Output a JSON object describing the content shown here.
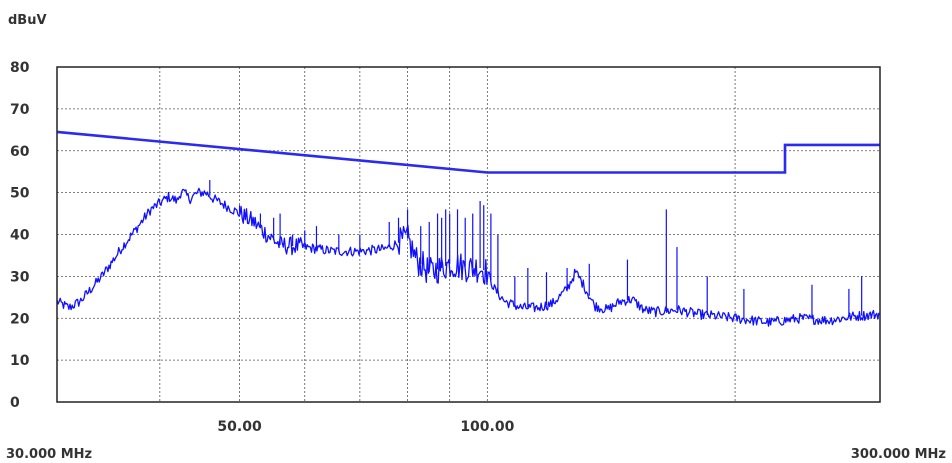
{
  "chart_data": {
    "type": "line",
    "ylabel": "dBuV",
    "xscale": "log",
    "xlim": [
      30,
      300
    ],
    "ylim": [
      0,
      80
    ],
    "yticks": [
      "80",
      "70",
      "60",
      "50",
      "40",
      "30",
      "20",
      "10",
      "0"
    ],
    "xtick_labels": [
      {
        "value": 50,
        "label": "50.00"
      },
      {
        "value": 100,
        "label": "100.00"
      }
    ],
    "x_start_label": "30.000 MHz",
    "x_end_label": "300.000 MHz",
    "grid": true,
    "colors": {
      "limit": "#2a2af0",
      "measurement": "#1010ff",
      "frame": "#222222",
      "grid": "#555555"
    },
    "series": [
      {
        "role": "limit",
        "points": [
          [
            30,
            64.5
          ],
          [
            100,
            54.8
          ],
          [
            230,
            54.8
          ],
          [
            230,
            61.4
          ],
          [
            300,
            61.4
          ]
        ]
      },
      {
        "role": "measurement",
        "points": [
          [
            30,
            24
          ],
          [
            31,
            22.5
          ],
          [
            32,
            24
          ],
          [
            33,
            27
          ],
          [
            34,
            30
          ],
          [
            35,
            33.5
          ],
          [
            36,
            37
          ],
          [
            37,
            40
          ],
          [
            38,
            43
          ],
          [
            39,
            46
          ],
          [
            40,
            47.5
          ],
          [
            41,
            49
          ],
          [
            42,
            48
          ],
          [
            42.5,
            50.5
          ],
          [
            43.5,
            48.5
          ],
          [
            44.5,
            50
          ],
          [
            45.5,
            50
          ],
          [
            46.5,
            48.5
          ],
          [
            48,
            47
          ],
          [
            50,
            45
          ],
          [
            52,
            43
          ],
          [
            54,
            40
          ],
          [
            56,
            37.5
          ],
          [
            60,
            37
          ],
          [
            65,
            36
          ],
          [
            70,
            36
          ],
          [
            75,
            36.5
          ],
          [
            80,
            39
          ],
          [
            82,
            34
          ],
          [
            85,
            31
          ],
          [
            88,
            32
          ],
          [
            90,
            33
          ],
          [
            95,
            32
          ],
          [
            98,
            32
          ],
          [
            100,
            31
          ],
          [
            102,
            27
          ],
          [
            105,
            24
          ],
          [
            110,
            22.5
          ],
          [
            115,
            22.5
          ],
          [
            120,
            23.5
          ],
          [
            125,
            27
          ],
          [
            128,
            31
          ],
          [
            130,
            29
          ],
          [
            135,
            23
          ],
          [
            140,
            22
          ],
          [
            145,
            24
          ],
          [
            150,
            24.5
          ],
          [
            155,
            22
          ],
          [
            160,
            21.5
          ],
          [
            170,
            22
          ],
          [
            180,
            21
          ],
          [
            190,
            20.5
          ],
          [
            200,
            20
          ],
          [
            220,
            19
          ],
          [
            240,
            20
          ],
          [
            260,
            19.5
          ],
          [
            280,
            20.5
          ],
          [
            300,
            21
          ]
        ],
        "spikes": [
          [
            46,
            53
          ],
          [
            50,
            47
          ],
          [
            52,
            44
          ],
          [
            53,
            45
          ],
          [
            55,
            44
          ],
          [
            56,
            45
          ],
          [
            58,
            40
          ],
          [
            60,
            41
          ],
          [
            62,
            42
          ],
          [
            66,
            40
          ],
          [
            70,
            40
          ],
          [
            76,
            43
          ],
          [
            78,
            44
          ],
          [
            80,
            46
          ],
          [
            83,
            42
          ],
          [
            85,
            43
          ],
          [
            87,
            45
          ],
          [
            88,
            44
          ],
          [
            89,
            46
          ],
          [
            90,
            45
          ],
          [
            92,
            46
          ],
          [
            94,
            44
          ],
          [
            96,
            45
          ],
          [
            98,
            48
          ],
          [
            99,
            47
          ],
          [
            101,
            45
          ],
          [
            103,
            40
          ],
          [
            108,
            30
          ],
          [
            112,
            32
          ],
          [
            118,
            31
          ],
          [
            125,
            32
          ],
          [
            133,
            33
          ],
          [
            148,
            34
          ],
          [
            165,
            46
          ],
          [
            170,
            37
          ],
          [
            185,
            30
          ],
          [
            205,
            27
          ],
          [
            248,
            28
          ],
          [
            275,
            27
          ],
          [
            285,
            30
          ]
        ]
      }
    ]
  }
}
